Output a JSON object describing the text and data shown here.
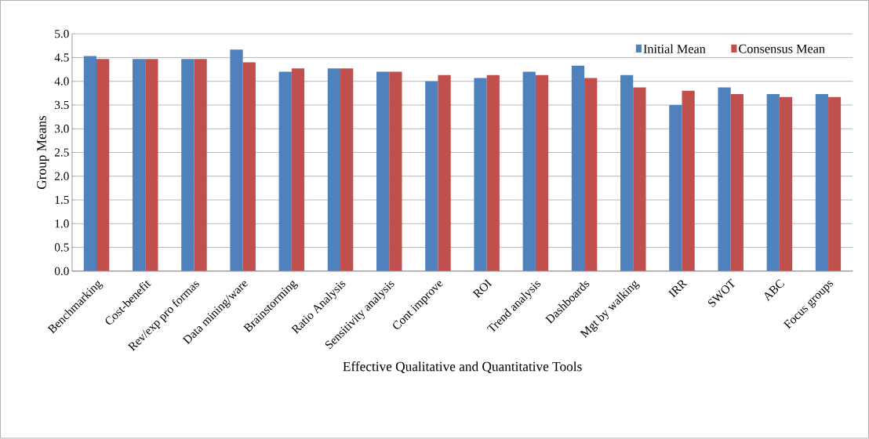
{
  "chart_data": {
    "type": "bar",
    "xlabel": "Effective Qualitative and Quantitative Tools",
    "ylabel": "Group  Means",
    "categories": [
      "Benchmarking",
      "Cost-benefit",
      "Rev/exp pro formas",
      "Data mining/ware",
      "Brainstorming",
      "Ratio Analysis",
      "Sensitivity analysis",
      "Cont improve",
      "ROI",
      "Trend analysis",
      "Dashboards",
      "Mgt by walking",
      "IRR",
      "SWOT",
      "ABC",
      "Focus groups"
    ],
    "series": [
      {
        "name": "Initial Mean",
        "color": "#4f81bd",
        "values": [
          4.53,
          4.47,
          4.47,
          4.67,
          4.2,
          4.27,
          4.2,
          4.0,
          4.07,
          4.2,
          4.33,
          4.13,
          3.5,
          3.87,
          3.73,
          3.73
        ]
      },
      {
        "name": "Consensus Mean",
        "color": "#c0504d",
        "values": [
          4.47,
          4.47,
          4.47,
          4.4,
          4.27,
          4.27,
          4.2,
          4.13,
          4.13,
          4.13,
          4.07,
          3.87,
          3.8,
          3.73,
          3.67,
          3.67
        ]
      }
    ],
    "ylim": [
      0,
      5
    ],
    "yticks": [
      {
        "value": 0,
        "label": "0.0"
      },
      {
        "value": 0.5,
        "label": "0.5"
      },
      {
        "value": 1,
        "label": "1.0"
      },
      {
        "value": 1.5,
        "label": "1.5"
      },
      {
        "value": 2,
        "label": "2.0"
      },
      {
        "value": 2.5,
        "label": "2.5"
      },
      {
        "value": 3,
        "label": "3.0"
      },
      {
        "value": 3.5,
        "label": "3.5"
      },
      {
        "value": 4,
        "label": "4.0"
      },
      {
        "value": 4.5,
        "label": "4.5"
      },
      {
        "value": 5,
        "label": "5.0"
      }
    ],
    "grid": "y",
    "legend": "top right"
  }
}
